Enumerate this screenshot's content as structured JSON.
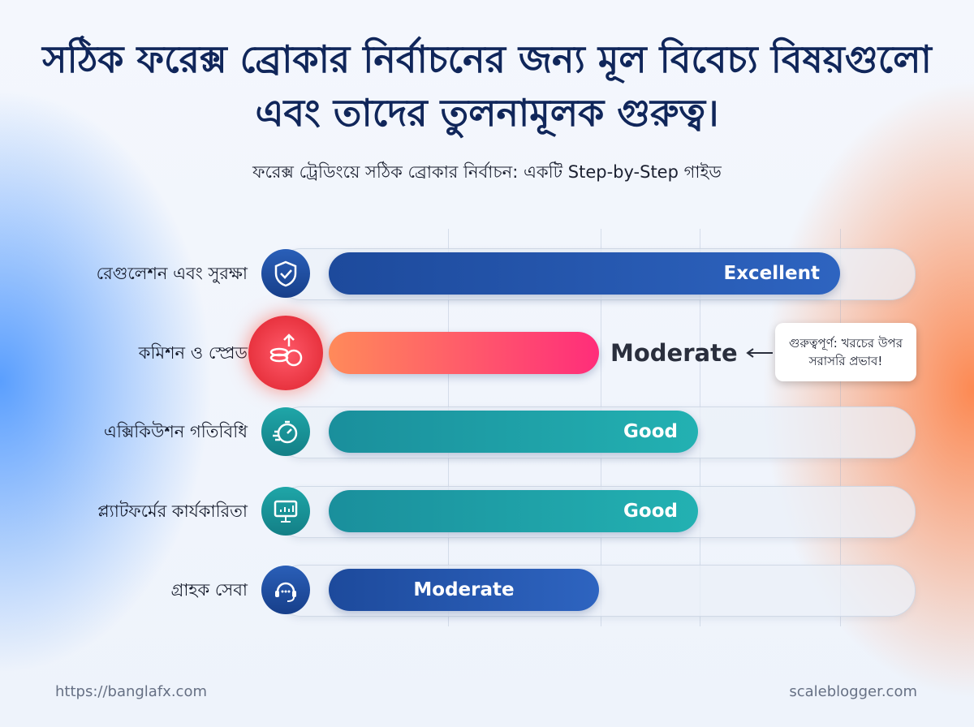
{
  "header": {
    "title": "সঠিক ফরেক্স ব্রোকার নির্বাচনের জন্য মূল বিবেচ্য বিষয়গুলো এবং তাদের তুলনামূলক গুরুত্ব।",
    "subtitle": "ফরেক্স ট্রেডিংয়ে সঠিক ব্রোকার নির্বাচন: একটি Step-by-Step গাইড"
  },
  "rows": [
    {
      "label": "রেগুলেশন এবং সুরক্ষা",
      "rating": "Excellent"
    },
    {
      "label": "কমিশন ও স্প্রেড",
      "rating": "Moderate"
    },
    {
      "label": "এক্সিকিউশন গতিবিধি",
      "rating": "Good"
    },
    {
      "label": "প্ল্যাটফর্মের কার্যকারিতা",
      "rating": "Good"
    },
    {
      "label": "গ্রাহক সেবা",
      "rating": "Moderate"
    }
  ],
  "callout": "গুরুত্বপূর্ণ: খরচের উপর সরাসরি প্রভাব!",
  "footer": {
    "left": "https://banglafx.com",
    "right": "scaleblogger.com"
  }
}
